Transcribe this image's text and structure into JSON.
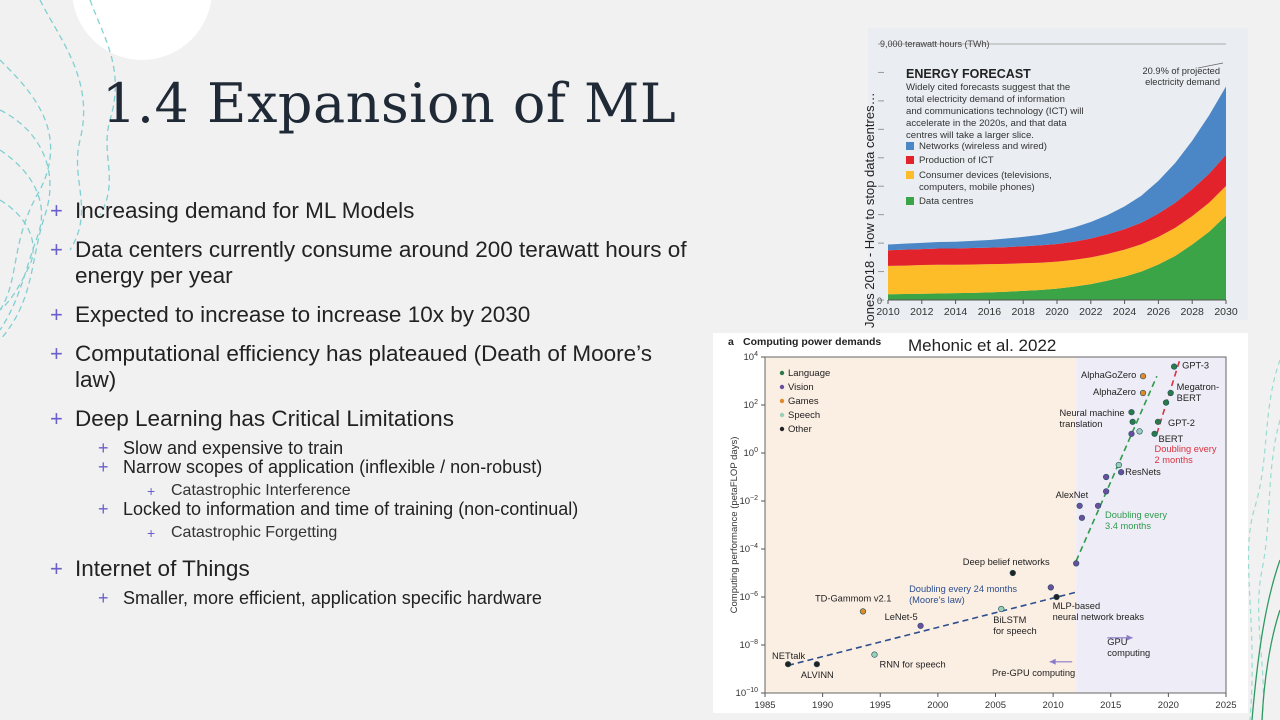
{
  "slide": {
    "title": "1.4 Expansion of ML",
    "bullets": [
      {
        "level": 1,
        "text": "Increasing demand for ML Models"
      },
      {
        "level": 1,
        "text": "Data centers currently consume around 200 terawatt hours of energy per year"
      },
      {
        "level": 1,
        "text": "Expected to increase to increase 10x by 2030"
      },
      {
        "level": 1,
        "text": "Computational efficiency has plateaued (Death of Moore’s law)"
      },
      {
        "level": 1,
        "text": "Deep Learning has Critical Limitations"
      },
      {
        "level": 2,
        "text": "Slow and expensive to train"
      },
      {
        "level": 2,
        "text": "Narrow scopes of application (inflexible / non-robust)"
      },
      {
        "level": 3,
        "text": "Catastrophic Interference"
      },
      {
        "level": 2,
        "text": "Locked to information and time of training (non-continual)"
      },
      {
        "level": 3,
        "text": "Catastrophic Forgetting"
      },
      {
        "level": 1,
        "text": "Internet of Things"
      },
      {
        "level": 2,
        "text": "Smaller, more efficient, application specific hardware"
      }
    ],
    "bullet_glyph": "+",
    "accent_color": "#6a5fc9",
    "decor_color": "#5cc4c4"
  },
  "captions": {
    "energy_source": "Jones 2018 - How to stop data centres…",
    "compute_source": "Mehonic et al. 2022"
  },
  "chart_data": [
    {
      "type": "area",
      "title": "ENERGY FORECAST",
      "subtitle": "Widely cited forecasts suggest that the total electricity demand of information and communications technology (ICT) will accelerate in the 2020s, and that data centres will take a larger slice.",
      "ylabel_top": "9,000 terawatt hours (TWh)",
      "y_zero_label": "0",
      "ylim": [
        0,
        9000
      ],
      "stacking": "stacked",
      "x": [
        2010,
        2011,
        2012,
        2013,
        2014,
        2015,
        2016,
        2017,
        2018,
        2019,
        2020,
        2021,
        2022,
        2023,
        2024,
        2025,
        2026,
        2027,
        2028,
        2029,
        2030
      ],
      "x_tick_labels": [
        "2010",
        "2012",
        "2014",
        "2016",
        "2018",
        "2020",
        "2022",
        "2024",
        "2026",
        "2028",
        "2030"
      ],
      "series": [
        {
          "name": "Data centres",
          "color": "#3aa447",
          "values": [
            200,
            210,
            220,
            230,
            240,
            250,
            270,
            290,
            320,
            350,
            400,
            470,
            560,
            680,
            820,
            1000,
            1250,
            1550,
            1950,
            2400,
            2967
          ]
        },
        {
          "name": "Consumer devices (televisions, computers, mobile phones)",
          "color": "#fdbd28",
          "values": [
            1000,
            1000,
            1010,
            1010,
            1000,
            1000,
            990,
            980,
            970,
            960,
            950,
            940,
            940,
            940,
            950,
            960,
            970,
            990,
            1000,
            1020,
            1040
          ]
        },
        {
          "name": "Production of ICT",
          "color": "#e3232c",
          "values": [
            550,
            560,
            560,
            570,
            570,
            580,
            580,
            590,
            600,
            610,
            620,
            640,
            660,
            690,
            720,
            760,
            820,
            880,
            950,
            1020,
            1100
          ]
        },
        {
          "name": "Networks (wireless and wired)",
          "color": "#4b86c6",
          "values": [
            200,
            210,
            220,
            230,
            240,
            250,
            270,
            300,
            330,
            370,
            430,
            500,
            580,
            680,
            800,
            950,
            1150,
            1400,
            1700,
            2050,
            2400
          ]
        }
      ],
      "annotation": "20.9% of projected electricity demand",
      "legend_position": "top-left"
    },
    {
      "type": "scatter",
      "panel_label": "a",
      "title": "Computing power demands",
      "ylabel": "Computing performance (petaFLOP days)",
      "y_scale": "log",
      "xlim": [
        1985,
        2025
      ],
      "ylim_exponent": [
        -10,
        4
      ],
      "x_ticks": [
        1985,
        1990,
        1995,
        2000,
        2005,
        2010,
        2015,
        2020,
        2025
      ],
      "y_ticks": [
        {
          "b": "10",
          "e": "4"
        },
        {
          "b": "10",
          "e": "2"
        },
        {
          "b": "10",
          "e": "0"
        },
        {
          "b": "10",
          "e": "−2"
        },
        {
          "b": "10",
          "e": "−4"
        },
        {
          "b": "10",
          "e": "−6"
        },
        {
          "b": "10",
          "e": "−8"
        },
        {
          "b": "10",
          "e": "−10"
        }
      ],
      "legend": [
        {
          "name": "Language",
          "color": "#2a7a4a"
        },
        {
          "name": "Vision",
          "color": "#6a4fa0"
        },
        {
          "name": "Games",
          "color": "#e08a2a"
        },
        {
          "name": "Speech",
          "color": "#9ad0b8"
        },
        {
          "name": "Other",
          "color": "#222222"
        }
      ],
      "legend_position": "top-left",
      "era_labels": {
        "pre_gpu": "Pre-GPU computing",
        "gpu": "GPU computing"
      },
      "era_split_year": 2012,
      "trend_lines": [
        {
          "label": "Doubling every 24 months (Moore’s law)",
          "color": "#2c4f8f",
          "from": [
            1987,
            -8.85
          ],
          "to": [
            2012,
            -5.8
          ]
        },
        {
          "label": "Doubling every 3.4 months",
          "color": "#2f9a4c",
          "from": [
            2012,
            -4.5
          ],
          "to": [
            2019,
            3.2
          ]
        },
        {
          "label": "Doubling every 2 months",
          "color": "#d9323e",
          "from": [
            2019,
            0.8
          ],
          "to": [
            2021,
            3.9
          ]
        }
      ],
      "points": [
        {
          "name": "NETtalk",
          "x": 1987,
          "logy": -8.8,
          "cat": "Other"
        },
        {
          "name": "ALVINN",
          "x": 1989.5,
          "logy": -8.8,
          "cat": "Other"
        },
        {
          "name": "RNN for speech",
          "x": 1994.5,
          "logy": -8.4,
          "cat": "Speech"
        },
        {
          "name": "TD-Gammom v2.1",
          "x": 1993.5,
          "logy": -6.6,
          "cat": "Games"
        },
        {
          "name": "LeNet-5",
          "x": 1998.5,
          "logy": -7.2,
          "cat": "Vision"
        },
        {
          "name": "BiLSTM for speech",
          "x": 2005.5,
          "logy": -6.5,
          "cat": "Speech"
        },
        {
          "name": "Deep belief networks",
          "x": 2006.5,
          "logy": -5.0,
          "cat": "Other"
        },
        {
          "name": "MLP-based neural network breaks",
          "x": 2010.3,
          "logy": -6.0,
          "cat": "Other"
        },
        {
          "name": "",
          "x": 2009.8,
          "logy": -5.6,
          "cat": "Vision"
        },
        {
          "name": "",
          "x": 2012.0,
          "logy": -4.6,
          "cat": "Vision"
        },
        {
          "name": "AlexNet",
          "x": 2012.3,
          "logy": -2.2,
          "cat": "Vision"
        },
        {
          "name": "",
          "x": 2012.5,
          "logy": -2.7,
          "cat": "Vision"
        },
        {
          "name": "",
          "x": 2013.9,
          "logy": -2.2,
          "cat": "Vision"
        },
        {
          "name": "",
          "x": 2014.6,
          "logy": -1.6,
          "cat": "Vision"
        },
        {
          "name": "",
          "x": 2014.6,
          "logy": -1.0,
          "cat": "Vision"
        },
        {
          "name": "ResNets",
          "x": 2015.9,
          "logy": -0.8,
          "cat": "Vision"
        },
        {
          "name": "",
          "x": 2015.7,
          "logy": -0.5,
          "cat": "Speech"
        },
        {
          "name": "",
          "x": 2016.8,
          "logy": 0.8,
          "cat": "Vision"
        },
        {
          "name": "",
          "x": 2017.5,
          "logy": 0.9,
          "cat": "Speech"
        },
        {
          "name": "Neural machine translation",
          "x": 2016.8,
          "logy": 1.7,
          "cat": "Language"
        },
        {
          "name": "",
          "x": 2016.9,
          "logy": 1.3,
          "cat": "Language"
        },
        {
          "name": "AlphaZero",
          "x": 2017.8,
          "logy": 2.5,
          "cat": "Games"
        },
        {
          "name": "AlphaGoZero",
          "x": 2017.8,
          "logy": 3.2,
          "cat": "Games"
        },
        {
          "name": "BERT",
          "x": 2018.8,
          "logy": 0.8,
          "cat": "Language"
        },
        {
          "name": "GPT-2",
          "x": 2019.1,
          "logy": 1.3,
          "cat": "Language"
        },
        {
          "name": "",
          "x": 2019.8,
          "logy": 2.1,
          "cat": "Language"
        },
        {
          "name": "Megatron-BERT",
          "x": 2020.2,
          "logy": 2.5,
          "cat": "Language"
        },
        {
          "name": "GPT-3",
          "x": 2020.5,
          "logy": 3.6,
          "cat": "Language"
        }
      ]
    }
  ]
}
